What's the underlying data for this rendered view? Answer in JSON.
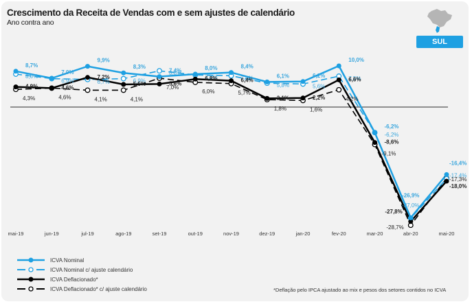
{
  "header": {
    "title": "Crescimento da Receita de Vendas com e sem ajustes de calendário",
    "subtitle": "Ano contra ano"
  },
  "region": {
    "label": "SUL",
    "icon": "brazil-map-icon",
    "color": "#1ea0e2"
  },
  "footnote": "*Deflação pelo IPCA ajustado ao mix e pesos dos setores contidos no ICVA",
  "chart_data": {
    "type": "line",
    "title": "Crescimento da Receita de Vendas com e sem ajustes de calendário",
    "subtitle": "Ano contra ano",
    "xlabel": "",
    "ylabel": "",
    "categories": [
      "mai-19",
      "jun-19",
      "jul-19",
      "ago-19",
      "set-19",
      "out-19",
      "nov-19",
      "dez-19",
      "jan-20",
      "fev-20",
      "mar-20",
      "abr-20",
      "mai-20"
    ],
    "ylim": [
      -30,
      12
    ],
    "grid": false,
    "zero_line": true,
    "legend_position": "bottom-left",
    "series": [
      {
        "name": "ICVA Nominal",
        "color": "#1ea0e2",
        "style": "solid",
        "marker": "filled",
        "values": [
          8.7,
          7.0,
          9.9,
          8.3,
          7.4,
          8.0,
          8.4,
          6.1,
          6.2,
          10.0,
          -6.2,
          -26.9,
          -16.4
        ],
        "labels": [
          "8,7%",
          "7,0%",
          "9,9%",
          "8,3%",
          "7,4%",
          "8,0%",
          "8,4%",
          "6,1%",
          "6,2%",
          "10,0%",
          "-6,2%",
          "-26,9%",
          "-16,4%"
        ]
      },
      {
        "name": "ICVA Nominal c/ ajuste calendário",
        "color": "#1ea0e2",
        "style": "dashed",
        "marker": "open",
        "values": [
          8.0,
          6.9,
          6.7,
          6.9,
          8.8,
          7.8,
          7.6,
          5.8,
          5.6,
          7.5,
          -6.2,
          -27.0,
          -17.4
        ],
        "labels": [
          "8,0%",
          "6,9%",
          "6,7%",
          "6,9%",
          "8,8%",
          "7,8%",
          "7,6%",
          "5,8%",
          "5,6%",
          "7,5%",
          "-6,2%",
          "-27,0%",
          "-17,4%"
        ]
      },
      {
        "name": "ICVA Deflacionado*",
        "color": "#000000",
        "style": "solid",
        "marker": "filled",
        "values": [
          4.9,
          4.6,
          7.2,
          5.5,
          5.6,
          6.8,
          6.4,
          2.1,
          2.2,
          6.6,
          -8.6,
          -27.8,
          -18.0
        ],
        "labels": [
          "4,9%",
          "4,6%",
          "7,2%",
          "5,5%",
          "5,6%",
          "6,8%",
          "6,4%",
          "2,1%",
          "2,2%",
          "6,6%",
          "-8,6%",
          "-27,8%",
          "-18,0%"
        ]
      },
      {
        "name": "ICVA Deflacionado* c/ ajuste calendário",
        "color": "#000000",
        "style": "dashed",
        "marker": "open",
        "values": [
          4.3,
          4.6,
          4.1,
          4.1,
          7.0,
          6.0,
          5.7,
          1.8,
          1.6,
          4.2,
          -9.1,
          -28.7,
          -17.3
        ],
        "labels": [
          "4,3%",
          "4,6%",
          "4,1%",
          "4,1%",
          "7,0%",
          "6,0%",
          "5,7%",
          "1,8%",
          "1,6%",
          "4,2%",
          "-9,1%",
          "-28,7%",
          "-17,3%"
        ]
      }
    ]
  }
}
